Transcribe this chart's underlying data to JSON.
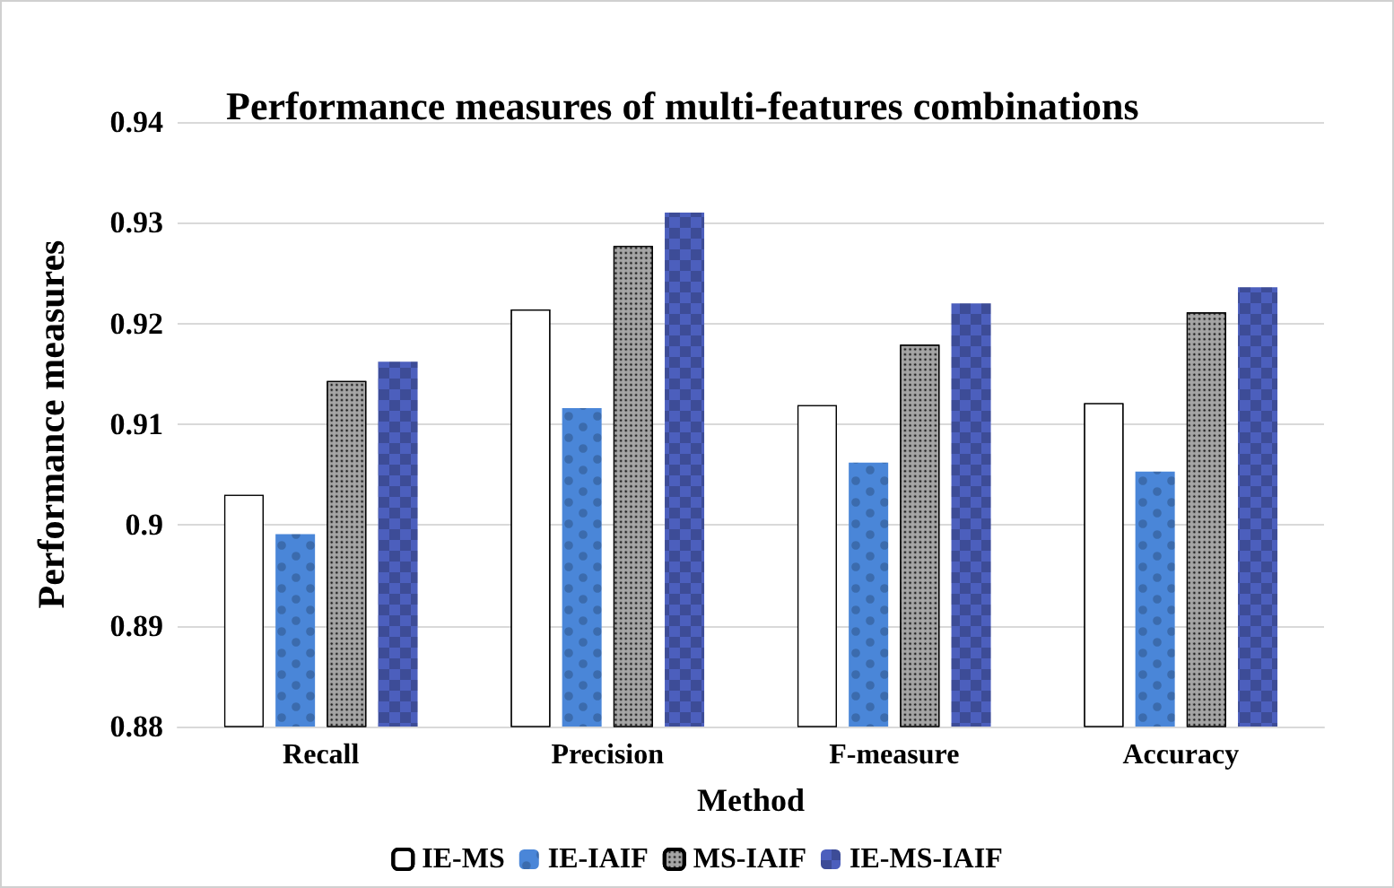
{
  "chart_data": {
    "type": "bar",
    "title": "Performance measures of multi-features combinations",
    "xlabel": "Method",
    "ylabel": "Performance measures",
    "categories": [
      "Recall",
      "Precision",
      "F-measure",
      "Accuracy"
    ],
    "series": [
      {
        "name": "IE-MS",
        "color": "#ffffff",
        "values": [
          0.903,
          0.9214,
          0.9119,
          0.9121
        ]
      },
      {
        "name": "IE-IAIF",
        "color": "#4a86d8",
        "values": [
          0.8991,
          0.9116,
          0.9062,
          0.9053
        ]
      },
      {
        "name": "MS-IAIF",
        "color": "#a6a6a6",
        "values": [
          0.9143,
          0.9277,
          0.9179,
          0.9211
        ]
      },
      {
        "name": "IE-MS-IAIF",
        "color": "#4c5fbd",
        "values": [
          0.9162,
          0.931,
          0.922,
          0.9236
        ]
      }
    ],
    "ylim": [
      0.88,
      0.94
    ],
    "yticks": [
      0.88,
      0.89,
      0.9,
      0.91,
      0.92,
      0.93,
      0.94
    ],
    "grid": "y",
    "legend": "bottom"
  }
}
